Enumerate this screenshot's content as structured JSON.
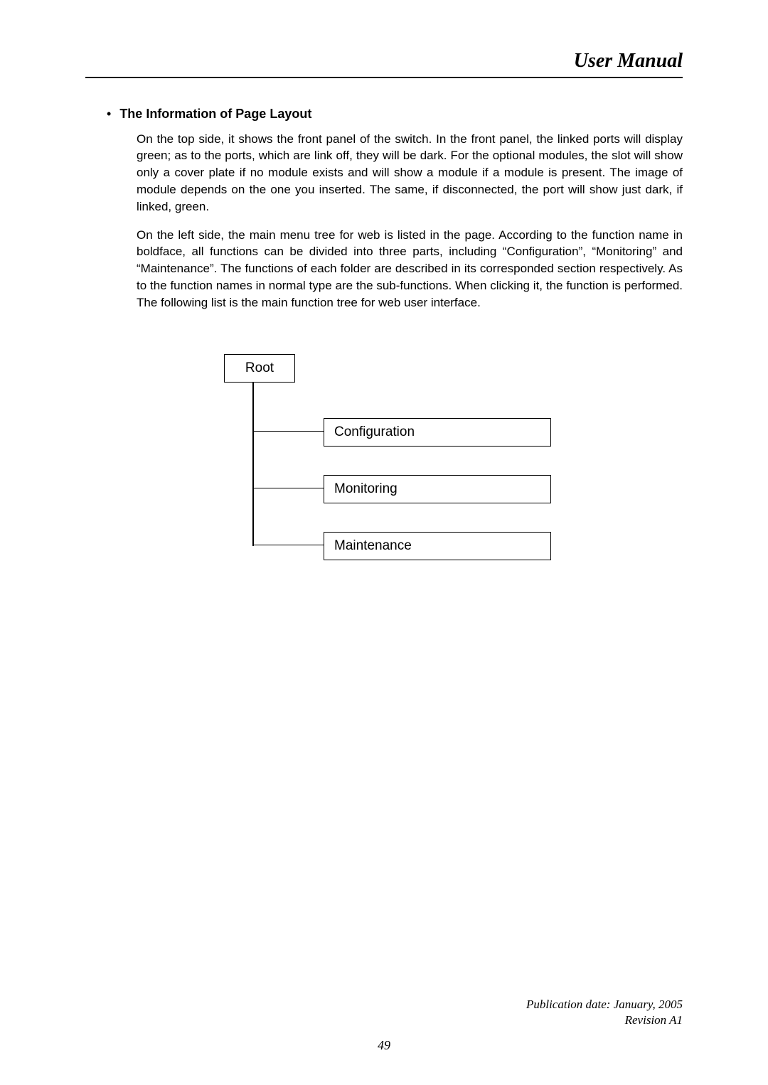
{
  "header": {
    "title": "User Manual"
  },
  "section": {
    "title": "The Information of Page Layout",
    "para1": "On the top side, it shows the front panel of the switch. In the front panel, the linked ports will display green; as to the ports, which are link off, they will be dark. For the optional modules, the slot will show only a cover plate if no module exists and will show a module if a module is present. The image of module depends on the one you inserted. The same, if disconnected, the port will show just dark, if linked, green.",
    "para2": "On the left side, the main menu tree for web is listed in the page. According to the function name in boldface, all functions can be divided into three parts, including “Configuration”, “Monitoring” and “Maintenance”. The functions of each folder are described in its corresponded section respectively. As to the function names in normal type are the sub-functions. When clicking it, the function is performed. The following list is the main function tree for web user interface."
  },
  "tree": {
    "root": "Root",
    "children": [
      "Configuration",
      "Monitoring",
      "Maintenance"
    ]
  },
  "footer": {
    "line1": "Publication date: January, 2005",
    "line2": "Revision A1"
  },
  "pageNumber": "49"
}
